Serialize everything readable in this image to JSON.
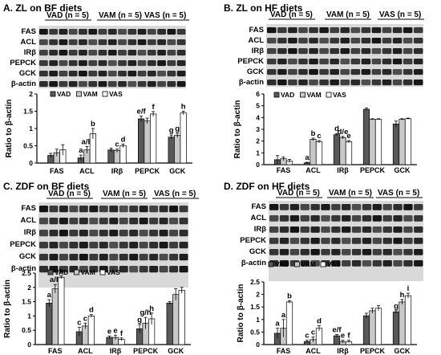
{
  "colors": {
    "VAD": "#595959",
    "VAM": "#c8c8c8",
    "VAS": "#ffffff",
    "stroke": "#000000",
    "blot_bg": "#d9d9d9",
    "band": "#1a1a1a"
  },
  "chart_data": [
    {
      "id": "A",
      "type": "bar",
      "title": "A. ZL on BF diets",
      "blot_groups": [
        "VAD (n = 5)",
        "VAM (n = 5)",
        "VAS (n = 5)"
      ],
      "blot_proteins": [
        "FAS",
        "ACL",
        "IRβ",
        "PEPCK",
        "GCK",
        "β-actin"
      ],
      "ylabel": "Ratio to β-actin",
      "ylim": [
        0,
        2
      ],
      "yticks": [
        "0",
        "0.5",
        "1",
        "1.5",
        "2"
      ],
      "categories": [
        "FAS",
        "ACL",
        "IRβ",
        "PEPCK",
        "GCK"
      ],
      "legend": [
        "VAD",
        "VAM",
        "VAS"
      ],
      "series": [
        {
          "name": "VAD",
          "values": [
            0.22,
            0.15,
            0.38,
            1.28,
            0.75
          ],
          "errors": [
            0.06,
            0.08,
            0.05,
            0.08,
            0.06
          ]
        },
        {
          "name": "VAM",
          "values": [
            0.3,
            0.38,
            0.36,
            1.22,
            0.8
          ],
          "errors": [
            0.1,
            0.1,
            0.05,
            0.08,
            0.06
          ]
        },
        {
          "name": "VAS",
          "values": [
            0.38,
            0.85,
            0.5,
            1.42,
            1.45
          ],
          "errors": [
            0.15,
            0.15,
            0.05,
            0.07,
            0.05
          ]
        }
      ],
      "annotations": [
        [
          "",
          "",
          "",
          "e/f",
          "g"
        ],
        [
          "",
          "a/b",
          "c",
          "",
          "g"
        ],
        [
          "",
          "b",
          "d",
          "f",
          "h"
        ]
      ],
      "extra_annotations": [
        {
          "text": "a",
          "cat": 1,
          "bar": 0
        }
      ]
    },
    {
      "id": "B",
      "type": "bar",
      "title": "B. ZL on HF diets",
      "blot_groups": [
        "VAD (n = 5)",
        "VAM (n = 5)",
        "VAS (n = 5)"
      ],
      "blot_proteins": [
        "FAS",
        "ACL",
        "IRβ",
        "PEPCK",
        "GCK",
        "β-actin"
      ],
      "ylabel": "Ratio to β-actin",
      "ylim": [
        0,
        6
      ],
      "yticks": [
        "0",
        "1",
        "2",
        "3",
        "4",
        "5",
        "6"
      ],
      "categories": [
        "FAS",
        "ACL",
        "IRβ",
        "PEPCK",
        "GCK"
      ],
      "legend": [
        "VAD",
        "VAM",
        "VAS"
      ],
      "series": [
        {
          "name": "VAD",
          "values": [
            0.42,
            0.15,
            2.55,
            4.7,
            3.45
          ],
          "errors": [
            0.35,
            0.05,
            0.1,
            0.1,
            0.25
          ]
        },
        {
          "name": "VAM",
          "values": [
            0.5,
            2.15,
            2.3,
            3.85,
            3.85
          ],
          "errors": [
            0.15,
            0.1,
            0.1,
            0.05,
            0.05
          ]
        },
        {
          "name": "VAS",
          "values": [
            0.3,
            1.95,
            1.95,
            3.85,
            3.9
          ],
          "errors": [
            0.15,
            0.1,
            0.1,
            0.05,
            0.05
          ]
        }
      ],
      "annotations": [
        [
          "",
          "a",
          "d",
          "",
          ""
        ],
        [
          "",
          "b",
          "d/e",
          "",
          ""
        ],
        [
          "",
          "c",
          "e",
          "",
          ""
        ]
      ],
      "extra_annotations": []
    },
    {
      "id": "C",
      "type": "bar",
      "title": "C. ZDF on BF diets",
      "blot_groups": [
        "VAD (n = 5)",
        "VAM (n = 5)",
        "VAS (n = 5)"
      ],
      "blot_proteins": [
        "FAS",
        "ACL",
        "IRβ",
        "PEPCK",
        "GCK",
        "β-actin"
      ],
      "ylabel": "Ratio to β-actin",
      "ylim": [
        0,
        2.5
      ],
      "yticks": [
        "0",
        "0.5",
        "1",
        "1.5",
        "2",
        "2.5"
      ],
      "categories": [
        "FAS",
        "ACL",
        "IRβ",
        "PEPCK",
        "GCK"
      ],
      "legend": [
        "VAD",
        "VAM",
        "VAS"
      ],
      "series": [
        {
          "name": "VAD",
          "values": [
            1.45,
            0.45,
            0.25,
            0.55,
            1.45
          ],
          "errors": [
            0.12,
            0.15,
            0.05,
            0.15,
            0.05
          ]
        },
        {
          "name": "VAM",
          "values": [
            1.95,
            0.65,
            0.25,
            0.75,
            1.75
          ],
          "errors": [
            0.15,
            0.1,
            0.08,
            0.2,
            0.2
          ]
        },
        {
          "name": "VAS",
          "values": [
            2.35,
            1.0,
            0.18,
            0.9,
            1.9
          ],
          "errors": [
            0.05,
            0.05,
            0.05,
            0.2,
            0.1
          ]
        }
      ],
      "annotations": [
        [
          "a",
          "",
          "e",
          "g",
          ""
        ],
        [
          "a/b",
          "c",
          "e",
          "g/h",
          ""
        ],
        [
          "b",
          "d",
          "f",
          "h",
          ""
        ]
      ],
      "extra_annotations": [
        {
          "text": "c",
          "cat": 1,
          "bar": 0
        }
      ]
    },
    {
      "id": "D",
      "type": "bar",
      "title": "D. ZDF on HF diets",
      "blot_groups": [
        "VAD (n = 5)",
        "VAM (n = 5)",
        "VAS (n = 5)"
      ],
      "blot_proteins": [
        "FAS",
        "ACL",
        "IRβ",
        "PEPCK",
        "GCK",
        "β-actin"
      ],
      "ylabel": "Ratio to β-actin",
      "ylim": [
        0,
        2.5
      ],
      "yticks": [
        "0",
        "0.5",
        "1",
        "1.5",
        "2",
        "2.5"
      ],
      "categories": [
        "FAS",
        "ACL",
        "IRβ",
        "PEPCK",
        "GCK"
      ],
      "legend": [
        "VAD",
        "VAM",
        "VAS"
      ],
      "series": [
        {
          "name": "VAD",
          "values": [
            0.45,
            0.12,
            0.35,
            1.15,
            1.3
          ],
          "errors": [
            0.2,
            0.05,
            0.05,
            0.1,
            0.05
          ]
        },
        {
          "name": "VAM",
          "values": [
            0.65,
            0.2,
            0.12,
            1.35,
            1.7
          ],
          "errors": [
            0.35,
            0.1,
            0.05,
            0.1,
            0.1
          ]
        },
        {
          "name": "VAS",
          "values": [
            1.7,
            0.65,
            0.12,
            1.45,
            1.95
          ],
          "errors": [
            0.05,
            0.1,
            0.05,
            0.1,
            0.1
          ]
        }
      ],
      "annotations": [
        [
          "a",
          "",
          "e/f",
          "",
          "g"
        ],
        [
          "a",
          "c",
          "e",
          "",
          "h"
        ],
        [
          "b",
          "d",
          "f",
          "",
          "i"
        ]
      ],
      "extra_annotations": [
        {
          "text": "c",
          "cat": 1,
          "bar": 0
        }
      ]
    }
  ]
}
